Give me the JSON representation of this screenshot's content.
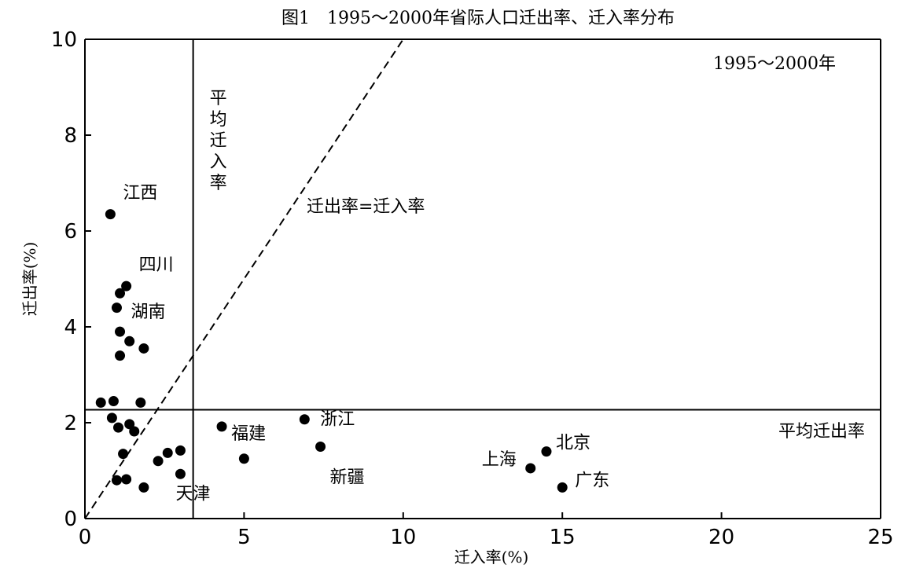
{
  "chart_data": {
    "type": "scatter",
    "title": "图1　1995～2000年省际人口迁出率、迁入率分布",
    "subtitle": "1995～2000年",
    "xlabel": "迁入率(%)",
    "ylabel": "迁出率(%)",
    "xlim": [
      0,
      25
    ],
    "ylim": [
      0,
      10
    ],
    "xticks": [
      0,
      5,
      10,
      15,
      20,
      25
    ],
    "yticks": [
      0,
      2,
      4,
      6,
      8,
      10
    ],
    "grid": false,
    "legend": "none",
    "reference_lines": {
      "avg_in_rate": 3.4,
      "avg_in_label": "平均迁入率",
      "avg_out_rate": 2.27,
      "avg_out_label": "平均迁出率",
      "diagonal_label": "迁出率=迁入率"
    },
    "points": [
      {
        "x": 0.8,
        "y": 6.35,
        "label": "江西"
      },
      {
        "x": 1.3,
        "y": 4.85,
        "label": "四川"
      },
      {
        "x": 1.1,
        "y": 4.7,
        "label": ""
      },
      {
        "x": 1.0,
        "y": 4.4,
        "label": ""
      },
      {
        "x": 1.1,
        "y": 3.9,
        "label": "湖南"
      },
      {
        "x": 1.4,
        "y": 3.7,
        "label": ""
      },
      {
        "x": 1.85,
        "y": 3.55,
        "label": ""
      },
      {
        "x": 1.1,
        "y": 3.4,
        "label": ""
      },
      {
        "x": 0.5,
        "y": 2.42,
        "label": ""
      },
      {
        "x": 0.9,
        "y": 2.45,
        "label": ""
      },
      {
        "x": 1.75,
        "y": 2.42,
        "label": ""
      },
      {
        "x": 0.85,
        "y": 2.1,
        "label": ""
      },
      {
        "x": 1.05,
        "y": 1.9,
        "label": ""
      },
      {
        "x": 1.4,
        "y": 1.97,
        "label": ""
      },
      {
        "x": 1.55,
        "y": 1.82,
        "label": ""
      },
      {
        "x": 1.2,
        "y": 1.35,
        "label": ""
      },
      {
        "x": 1.0,
        "y": 0.8,
        "label": ""
      },
      {
        "x": 1.3,
        "y": 0.82,
        "label": ""
      },
      {
        "x": 1.85,
        "y": 0.65,
        "label": ""
      },
      {
        "x": 2.3,
        "y": 1.2,
        "label": ""
      },
      {
        "x": 2.6,
        "y": 1.37,
        "label": ""
      },
      {
        "x": 3.0,
        "y": 1.42,
        "label": ""
      },
      {
        "x": 3.0,
        "y": 0.93,
        "label": "天津"
      },
      {
        "x": 4.3,
        "y": 1.92,
        "label": "福建"
      },
      {
        "x": 5.0,
        "y": 1.25,
        "label": ""
      },
      {
        "x": 6.9,
        "y": 2.07,
        "label": "浙江"
      },
      {
        "x": 7.4,
        "y": 1.5,
        "label": "新疆"
      },
      {
        "x": 14.5,
        "y": 1.4,
        "label": "北京"
      },
      {
        "x": 14.0,
        "y": 1.05,
        "label": "上海"
      },
      {
        "x": 15.0,
        "y": 0.65,
        "label": "广东"
      }
    ]
  }
}
